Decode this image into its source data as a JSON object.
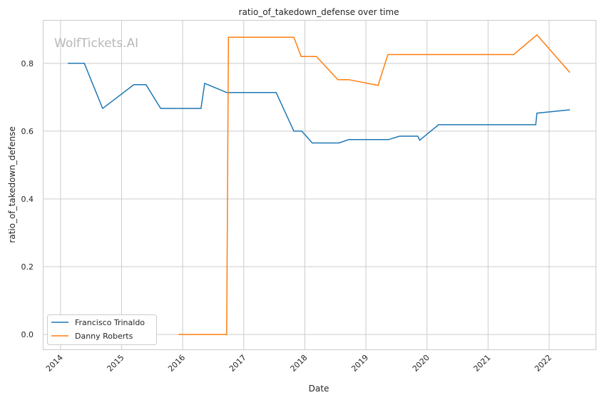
{
  "chart_data": {
    "type": "line",
    "title": "ratio_of_takedown_defense over time",
    "xlabel": "Date",
    "ylabel": "ratio_of_takedown_defense",
    "watermark": "WolfTickets.AI",
    "xlim": [
      2013.71,
      2022.76
    ],
    "ylim": [
      -0.044,
      0.928
    ],
    "x_ticks": [
      "2014",
      "2015",
      "2016",
      "2017",
      "2018",
      "2019",
      "2020",
      "2021",
      "2022"
    ],
    "y_ticks": [
      "0.0",
      "0.2",
      "0.4",
      "0.6",
      "0.8"
    ],
    "grid": true,
    "legend": "bottom-left",
    "series": [
      {
        "name": "Francisco Trinaldo",
        "color": "#1f77b4",
        "x": [
          2014.12,
          2014.39,
          2014.69,
          2015.2,
          2015.4,
          2015.64,
          2016.3,
          2016.36,
          2016.72,
          2017.53,
          2017.82,
          2017.95,
          2018.12,
          2018.56,
          2018.72,
          2019.37,
          2019.55,
          2019.85,
          2019.88,
          2020.19,
          2021.78,
          2021.8,
          2022.34
        ],
        "y": [
          0.8,
          0.8,
          0.667,
          0.737,
          0.737,
          0.667,
          0.667,
          0.741,
          0.714,
          0.714,
          0.6,
          0.6,
          0.565,
          0.565,
          0.575,
          0.575,
          0.585,
          0.585,
          0.573,
          0.619,
          0.619,
          0.653,
          0.663
        ]
      },
      {
        "name": "Danny Roberts",
        "color": "#ff7f0e",
        "x": [
          2015.93,
          2016.72,
          2016.75,
          2017.82,
          2017.94,
          2018.19,
          2018.54,
          2018.72,
          2019.2,
          2019.36,
          2021.42,
          2021.8,
          2022.34
        ],
        "y": [
          0,
          0,
          0.877,
          0.877,
          0.82,
          0.82,
          0.752,
          0.752,
          0.735,
          0.826,
          0.826,
          0.884,
          0.773
        ]
      }
    ]
  }
}
